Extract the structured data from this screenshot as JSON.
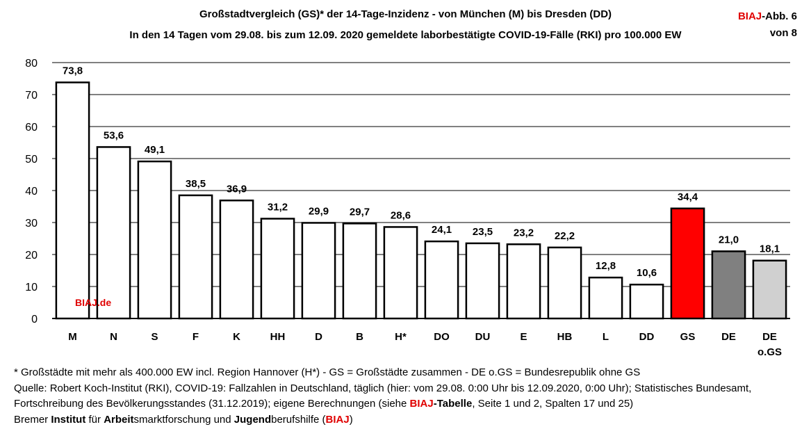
{
  "header": {
    "title_line1": "Großstadtvergleich (GS)* der 14-Tage-Inzidenz - von München (M) bis Dresden (DD)",
    "title_line2": "In den 14 Tagen vom 29.08. bis zum 12.09. 2020 gemeldete laborbestätigte COVID-19-Fälle (RKI) pro 100.000 EW",
    "badge_brand": "BIAJ",
    "badge_rest": "-Abb. 6",
    "badge_line2": "von 8"
  },
  "watermark": "BIAJ.de",
  "chart_data": {
    "type": "bar",
    "categories": [
      "M",
      "N",
      "S",
      "F",
      "K",
      "HH",
      "D",
      "B",
      "H*",
      "DO",
      "DU",
      "E",
      "HB",
      "L",
      "DD",
      "GS",
      "DE",
      "DE o.GS"
    ],
    "values": [
      73.8,
      53.6,
      49.1,
      38.5,
      36.9,
      31.2,
      29.9,
      29.7,
      28.6,
      24.1,
      23.5,
      23.2,
      22.2,
      12.8,
      10.6,
      34.4,
      21.0,
      18.1
    ],
    "value_labels": [
      "73,8",
      "53,6",
      "49,1",
      "38,5",
      "36,9",
      "31,2",
      "29,9",
      "29,7",
      "28,6",
      "24,1",
      "23,5",
      "23,2",
      "22,2",
      "12,8",
      "10,6",
      "34,4",
      "21,0",
      "18,1"
    ],
    "bar_colors": [
      "#ffffff",
      "#ffffff",
      "#ffffff",
      "#ffffff",
      "#ffffff",
      "#ffffff",
      "#ffffff",
      "#ffffff",
      "#ffffff",
      "#ffffff",
      "#ffffff",
      "#ffffff",
      "#ffffff",
      "#ffffff",
      "#ffffff",
      "#ff0000",
      "#808080",
      "#d0d0d0"
    ],
    "yticks": [
      0,
      10,
      20,
      30,
      40,
      50,
      60,
      70,
      80
    ],
    "ylim": [
      0,
      80
    ],
    "grid": true
  },
  "footer": {
    "note": "* Großstädte mit mehr als 400.000 EW incl. Region Hannover (H*) - GS = Großstädte zusammen - DE o.GS = Bundesrepublik ohne GS",
    "source_before": "Quelle: Robert Koch-Institut (RKI), COVID-19: Fallzahlen in Deutschland, täglich (hier: vom 29.08. 0:00 Uhr bis 12.09.2020, 0:00 Uhr); Statistisches Bundesamt, Fortschreibung des Bevölkerungsstandes (31.12.2019); eigene Berechnungen (siehe ",
    "source_brand": "BIAJ",
    "source_tabelle": "-Tabelle",
    "source_after": ", Seite 1 und 2, Spalten 17 und 25)",
    "org_w1": "Bremer ",
    "org_w2": "Institut",
    "org_w3": " für ",
    "org_w4": "Arbeit",
    "org_w5": "smarktforschung und ",
    "org_w6": "Jugend",
    "org_w7": "berufshilfe (",
    "org_w8": "BIAJ",
    "org_w9": ")"
  }
}
